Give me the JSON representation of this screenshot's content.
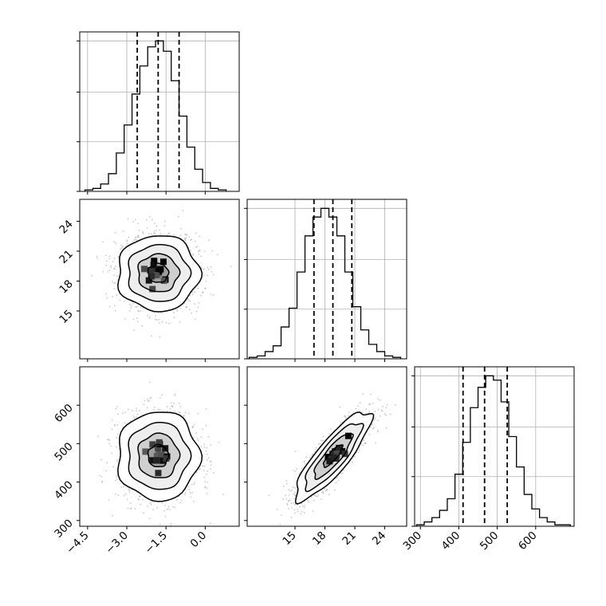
{
  "chart_data": [
    {
      "type": "histogram",
      "parameter_index": 0,
      "bin_edges": [
        -4.6,
        -4.3,
        -4.0,
        -3.7,
        -3.4,
        -3.1,
        -2.8,
        -2.5,
        -2.2,
        -1.9,
        -1.6,
        -1.3,
        -1.0,
        -0.7,
        -0.4,
        -0.1,
        0.2,
        0.5,
        0.8
      ],
      "counts": [
        1,
        2,
        5,
        12,
        26,
        45,
        66,
        85,
        98,
        102,
        95,
        75,
        51,
        30,
        15,
        6,
        2,
        1
      ],
      "quantiles": [
        -2.6,
        -1.8,
        -1.0
      ],
      "x_range": [
        -4.8,
        1.3
      ],
      "x_ticks": [
        -4.5,
        -3.0,
        -1.5,
        0.0
      ],
      "x_tick_labels": [
        "−4.5",
        "−3.0",
        "−1.5",
        "0.0"
      ],
      "grid": true
    },
    {
      "type": "histogram",
      "parameter_index": 1,
      "bin_edges": [
        10.4,
        11.2,
        12.0,
        12.8,
        13.6,
        14.4,
        15.2,
        16.0,
        16.8,
        17.6,
        18.4,
        19.2,
        20.0,
        20.8,
        21.6,
        22.4,
        23.2,
        24.0,
        24.8,
        25.6
      ],
      "counts": [
        1,
        2,
        5,
        9,
        22,
        35,
        60,
        85,
        98,
        104,
        98,
        85,
        60,
        36,
        20,
        10,
        5,
        2,
        1
      ],
      "quantiles": [
        16.9,
        18.8,
        20.7
      ],
      "x_range": [
        10.2,
        26.2
      ],
      "x_ticks": [
        15,
        18,
        21,
        24
      ],
      "x_tick_labels": [
        "15",
        "18",
        "21",
        "24"
      ],
      "grid": true
    },
    {
      "type": "histogram",
      "parameter_index": 2,
      "bin_edges": [
        290,
        310,
        330,
        350,
        370,
        390,
        410,
        430,
        450,
        470,
        490,
        510,
        530,
        550,
        570,
        590,
        610,
        630,
        650,
        670,
        690
      ],
      "counts": [
        1,
        3,
        6,
        11,
        19,
        36,
        58,
        82,
        96,
        104,
        101,
        86,
        62,
        41,
        22,
        12,
        6,
        3,
        1,
        1
      ],
      "quantiles": [
        411,
        467,
        526
      ],
      "x_range": [
        285,
        700
      ],
      "x_ticks": [
        300,
        400,
        500,
        600
      ],
      "x_tick_labels": [
        "300",
        "400",
        "500",
        "600"
      ],
      "grid": true
    },
    {
      "type": "scatter_density",
      "x_parameter": 0,
      "y_parameter": 1,
      "x_range": [
        -4.8,
        1.3
      ],
      "y_range": [
        10.2,
        26.2
      ],
      "center": [
        -1.8,
        18.8
      ],
      "std": [
        0.78,
        1.9
      ],
      "correlation": 0.0,
      "y_ticks": [
        15,
        18,
        21,
        24
      ],
      "y_tick_labels": [
        "15",
        "18",
        "21",
        "24"
      ],
      "contour_levels_sigma": [
        0.5,
        1.0,
        1.5,
        2.0
      ]
    },
    {
      "type": "scatter_density",
      "x_parameter": 0,
      "y_parameter": 2,
      "x_range": [
        -4.8,
        1.3
      ],
      "y_range": [
        285,
        700
      ],
      "center": [
        -1.8,
        468
      ],
      "std": [
        0.78,
        58
      ],
      "correlation": 0.0,
      "y_ticks": [
        300,
        400,
        500,
        600
      ],
      "y_tick_labels": [
        "300",
        "400",
        "500",
        "600"
      ],
      "contour_levels_sigma": [
        0.5,
        1.0,
        1.5,
        2.0
      ]
    },
    {
      "type": "scatter_density",
      "x_parameter": 1,
      "y_parameter": 2,
      "x_range": [
        10.2,
        26.2
      ],
      "y_range": [
        285,
        700
      ],
      "center": [
        18.8,
        468
      ],
      "std": [
        1.9,
        58
      ],
      "correlation": 0.85,
      "contour_levels_sigma": [
        0.5,
        1.0,
        1.5,
        2.0
      ]
    }
  ],
  "colors": {
    "line": "#000000",
    "grid": "#b0b0b0",
    "points": "#9a9a9a",
    "density_dark": "#000000",
    "density_light": "#ffffff"
  }
}
